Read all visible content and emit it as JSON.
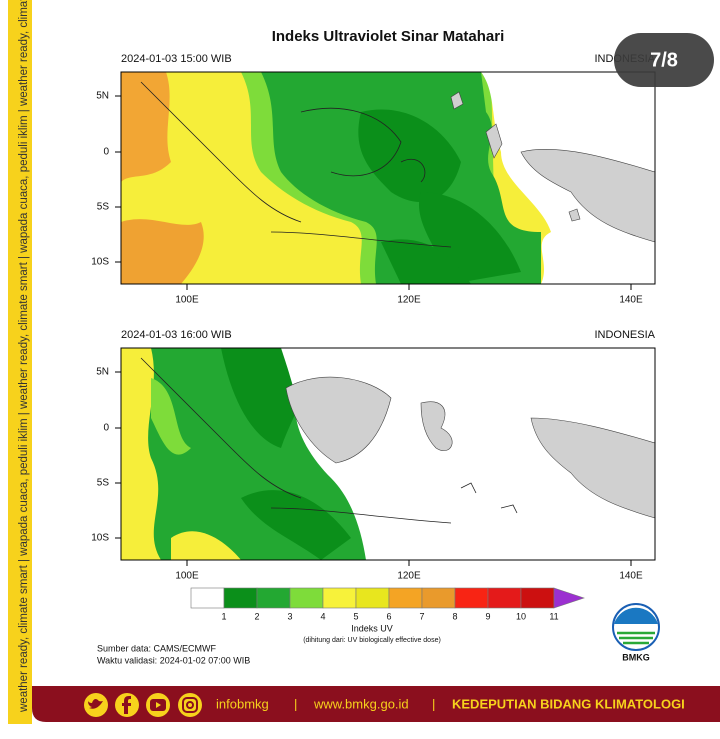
{
  "side_text": "weather ready, climate smart | wapada cuaca, peduli iklim | weather ready, climate smart | wapada cuaca, peduli iklim | weather ready, climate smart | wapada cuaca, peduli iklim",
  "badge": "7/8",
  "title": "Indeks Ultraviolet Sinar Matahari",
  "panels": [
    {
      "datetime": "2024-01-03 15:00 WIB",
      "region": "INDONESIA",
      "lat_labels": [
        "5N",
        "0",
        "5S",
        "10S"
      ],
      "lon_labels": [
        "100E",
        "120E",
        "140E"
      ]
    },
    {
      "datetime": "2024-01-03 16:00 WIB",
      "region": "INDONESIA",
      "lat_labels": [
        "5N",
        "0",
        "5S",
        "10S"
      ],
      "lon_labels": [
        "100E",
        "120E",
        "140E"
      ]
    }
  ],
  "colorbar": {
    "ticks": [
      1,
      2,
      3,
      4,
      5,
      6,
      7,
      8,
      9,
      10,
      11
    ],
    "colors": [
      "#ffffff",
      "#0b8f1a",
      "#23a832",
      "#7edc3a",
      "#f7f23a",
      "#e8e61e",
      "#f4a424",
      "#e99a2c",
      "#f82414",
      "#e41a1a",
      "#cc1010"
    ],
    "arrow_color": "#9b30d0",
    "title": "Indeks UV",
    "note": "(dihitung dari: UV biologically effective dose)"
  },
  "source": "Sumber data: CAMS/ECMWF",
  "validity": "Waktu validasi: 2024-01-02 07:00 WIB",
  "logo": "BMKG",
  "footer": {
    "handle": "infobmkg",
    "separator": "|",
    "website": "www.bmkg.go.id",
    "department": "KEDEPUTIAN BIDANG KLIMATOLOGI"
  }
}
